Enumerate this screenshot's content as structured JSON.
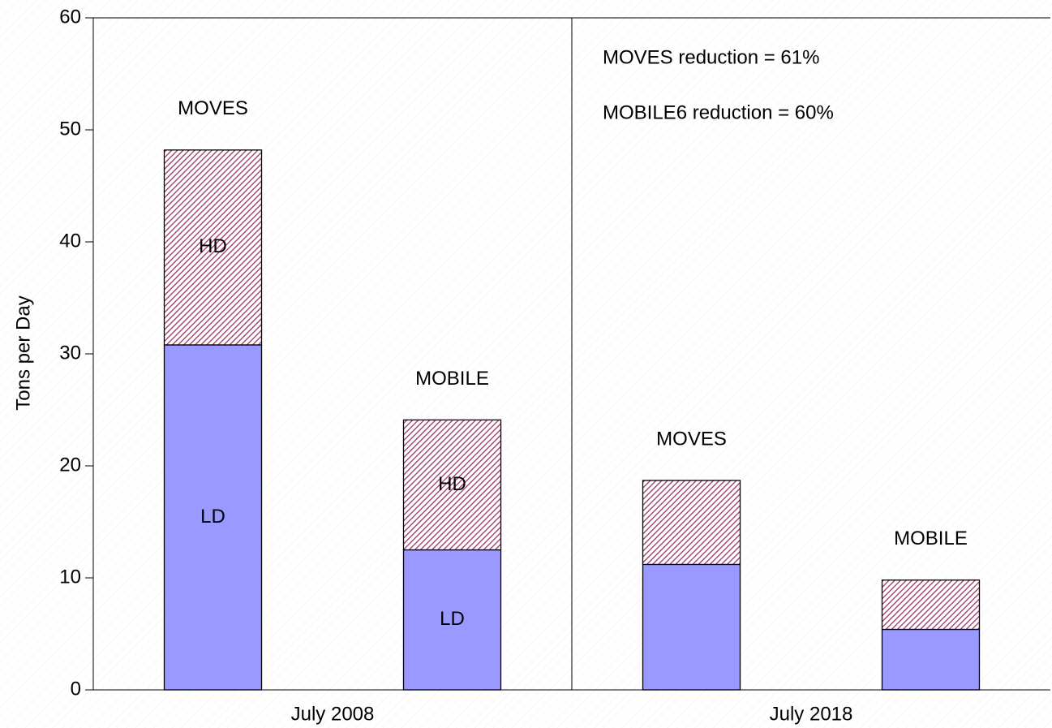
{
  "chart_data": {
    "type": "stacked-bar",
    "ylabel": "Tons per Day",
    "categories": [
      "MOVES",
      "MOBILE",
      "MOVES",
      "MOBILE"
    ],
    "groups": [
      "July 2008",
      "July 2018"
    ],
    "series": [
      {
        "name": "LD",
        "color": "#9999ff",
        "values": [
          30.8,
          12.5,
          11.2,
          5.4
        ]
      },
      {
        "name": "HD",
        "color": "#993366",
        "hatch": true,
        "values": [
          17.4,
          11.6,
          7.5,
          4.4
        ]
      }
    ],
    "annotations": [
      "MOVES reduction = 61%",
      "MOBILE6 reduction = 60%"
    ],
    "ylim": [
      0,
      60
    ],
    "yticks": [
      0,
      10,
      20,
      30,
      40,
      50,
      60
    ]
  }
}
